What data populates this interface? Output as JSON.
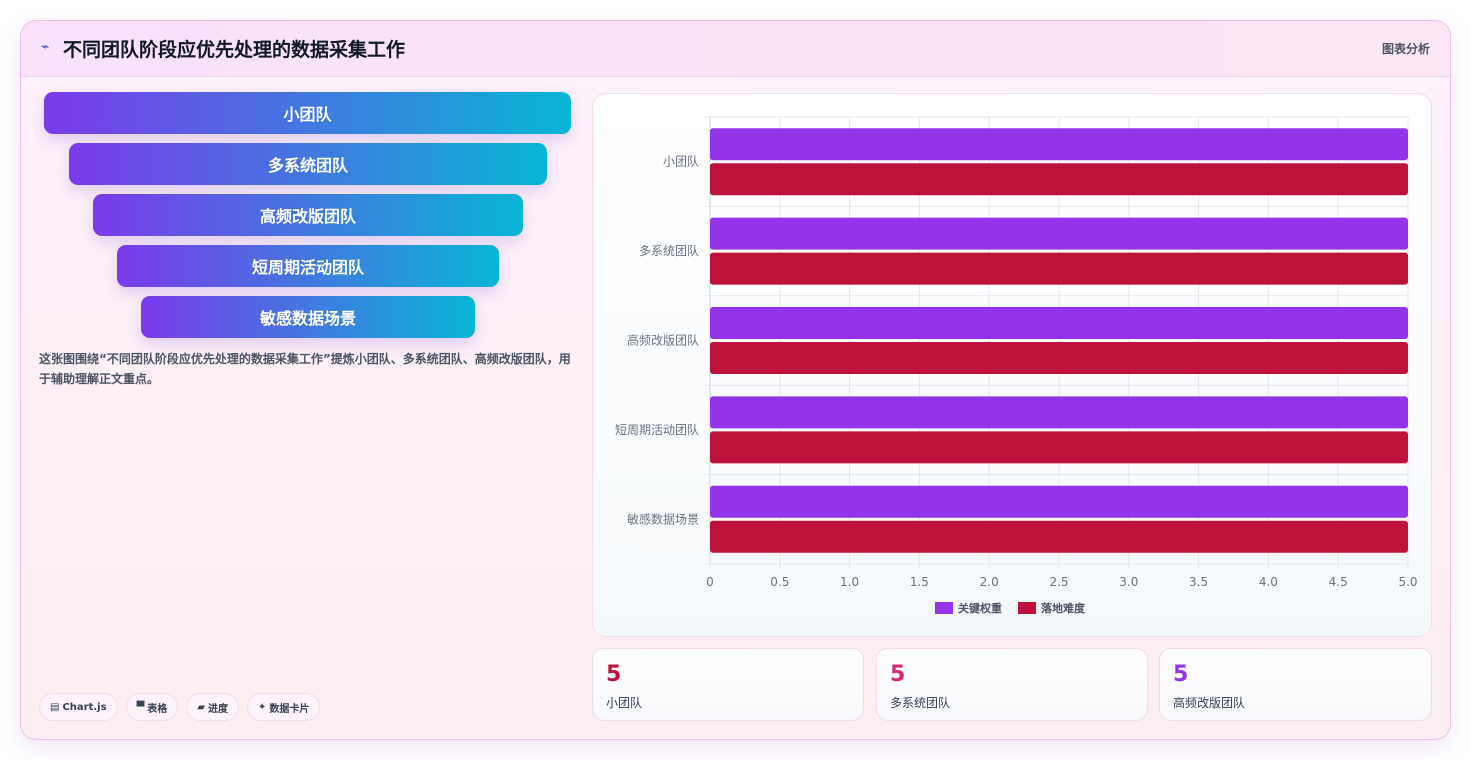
{
  "header": {
    "logo_icon": "sparkline-icon",
    "logo_glyph": "⌁",
    "title": "不同团队阶段应优先处理的数据采集工作",
    "tag": "图表分析"
  },
  "funnel": {
    "items": [
      "小团队",
      "多系统团队",
      "高频改版团队",
      "短周期活动团队",
      "敏感数据场景"
    ]
  },
  "description": "这张图围绕“不同团队阶段应优先处理的数据采集工作”提炼小团队、多系统团队、高频改版团队，用于辅助理解正文重点。",
  "chips": [
    {
      "icon": "chart-icon",
      "glyph": "▤",
      "label": "Chart.js"
    },
    {
      "icon": "table-icon",
      "glyph": "▀",
      "label": "表格"
    },
    {
      "icon": "progress-icon",
      "glyph": "▰",
      "label": "进度"
    },
    {
      "icon": "card-icon",
      "glyph": "✦",
      "label": "数据卡片"
    }
  ],
  "chart_data": {
    "type": "bar",
    "orientation": "horizontal",
    "categories": [
      "小团队",
      "多系统团队",
      "高频改版团队",
      "短周期活动团队",
      "敏感数据场景"
    ],
    "series": [
      {
        "name": "关键权重",
        "values": [
          5,
          5,
          5,
          5,
          5
        ],
        "color": "#9333ea"
      },
      {
        "name": "落地难度",
        "values": [
          5,
          5,
          5,
          5,
          5
        ],
        "color": "#be123c"
      }
    ],
    "xlim": [
      0,
      5
    ],
    "xticks": [
      "0",
      "0.5",
      "1.0",
      "1.5",
      "2.0",
      "2.5",
      "3.0",
      "3.5",
      "4.0",
      "4.5",
      "5.0"
    ],
    "grid": true,
    "legend": "bottom"
  },
  "stats": [
    {
      "value": "5",
      "label": "小团队",
      "color": "#be123c"
    },
    {
      "value": "5",
      "label": "多系统团队",
      "color": "#db2777"
    },
    {
      "value": "5",
      "label": "高频改版团队",
      "color": "#9333ea"
    }
  ]
}
